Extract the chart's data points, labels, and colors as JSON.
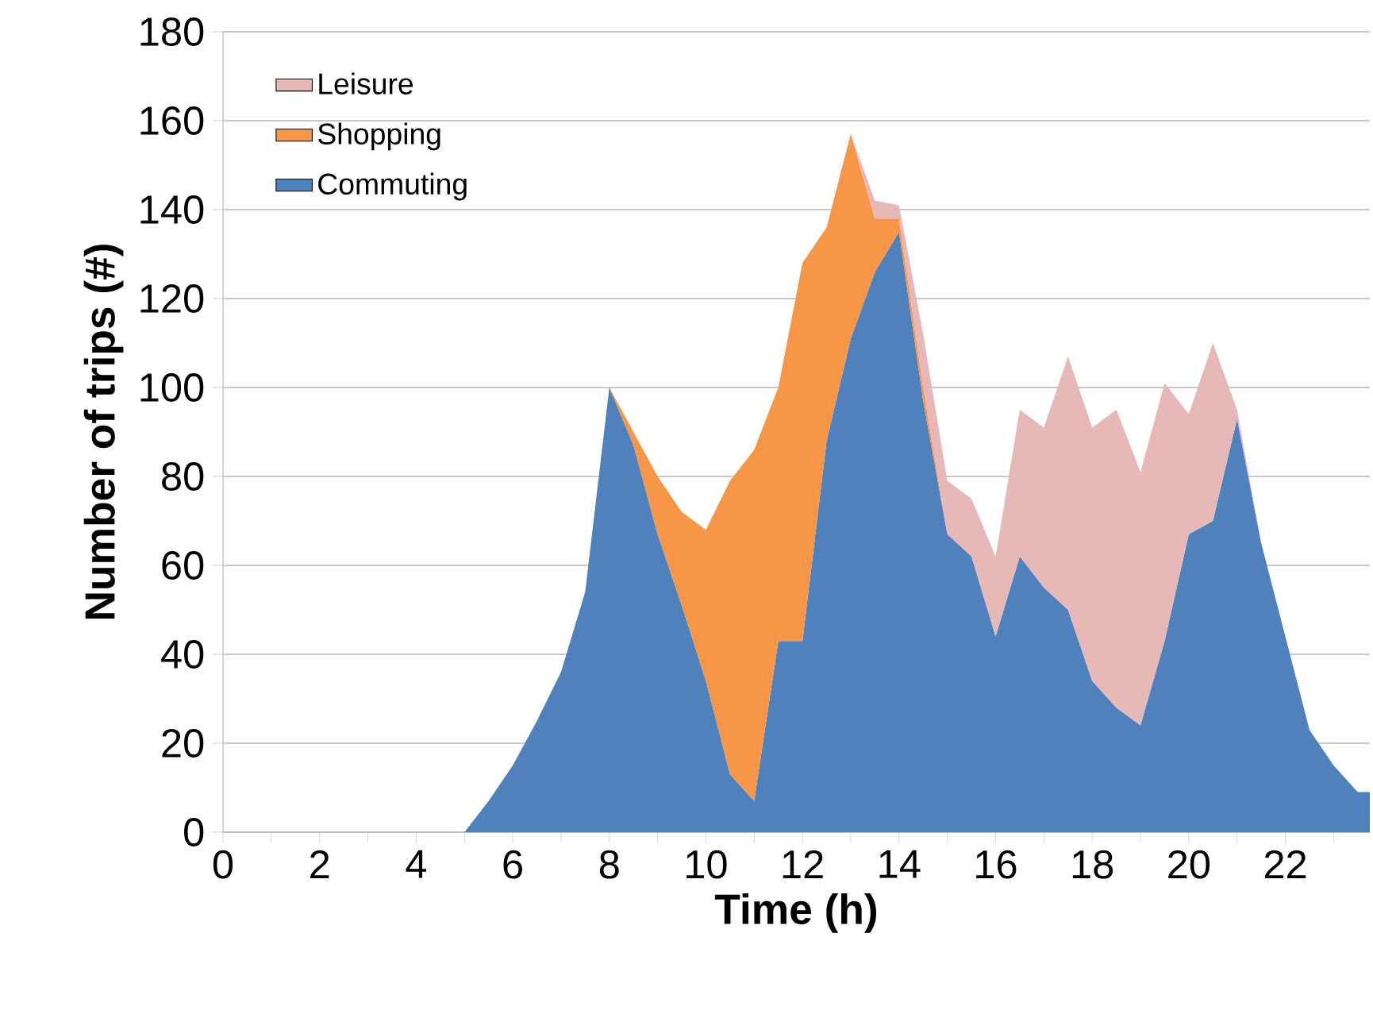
{
  "chart_data": {
    "type": "area",
    "stacked": true,
    "xlabel": "Time (h)",
    "ylabel": "Number of trips (#)",
    "x": [
      0,
      0.5,
      1,
      1.5,
      2,
      2.5,
      3,
      3.5,
      4,
      4.5,
      5,
      5.5,
      6,
      6.5,
      7,
      7.5,
      8,
      8.5,
      9,
      9.5,
      10,
      10.5,
      11,
      11.5,
      12,
      12.5,
      13,
      13.5,
      14,
      14.5,
      15,
      15.5,
      16,
      16.5,
      17,
      17.5,
      18,
      18.5,
      19,
      19.5,
      20,
      20.5,
      21,
      21.5,
      22,
      22.5,
      23,
      23.5,
      23.75
    ],
    "series": [
      {
        "name": "Commuting",
        "color": "#4f81bd",
        "values": [
          0,
          0,
          0,
          0,
          0,
          0,
          0,
          0,
          0,
          0,
          0,
          7,
          15,
          25,
          36,
          54,
          100,
          87,
          67,
          51,
          34,
          13,
          7,
          43,
          43,
          88,
          111,
          126,
          135,
          97,
          67,
          62,
          44,
          62,
          55,
          50,
          34,
          28,
          24,
          43,
          67,
          70,
          93,
          65,
          44,
          23,
          15,
          9,
          9
        ]
      },
      {
        "name": "Shopping",
        "color": "#f79646",
        "values": [
          null,
          null,
          null,
          null,
          null,
          null,
          null,
          null,
          null,
          null,
          null,
          null,
          null,
          null,
          null,
          null,
          0,
          3,
          13,
          21,
          34,
          66,
          79,
          57,
          85,
          48,
          46,
          12,
          3,
          3,
          0,
          null,
          null,
          null,
          null,
          null,
          null,
          null,
          null,
          null,
          null,
          null,
          null,
          null,
          null,
          null,
          null,
          null,
          null
        ]
      },
      {
        "name": "Leisure",
        "color": "#e6b9b8",
        "values": [
          null,
          null,
          null,
          null,
          null,
          null,
          null,
          null,
          null,
          null,
          null,
          null,
          null,
          null,
          null,
          null,
          null,
          null,
          null,
          null,
          null,
          null,
          null,
          null,
          null,
          null,
          0,
          4,
          3,
          12,
          12,
          13,
          18,
          33,
          36,
          57,
          57,
          67,
          57,
          58,
          27,
          40,
          2,
          0,
          null,
          null,
          null,
          null,
          null
        ]
      }
    ],
    "xlim": [
      0,
      23.75
    ],
    "xticks": [
      0,
      {
        "value": 1,
        "label": null
      },
      2,
      {
        "value": 3,
        "label": null
      },
      4,
      {
        "value": 5,
        "label": null
      },
      6,
      {
        "value": 7,
        "label": null
      },
      8,
      {
        "value": 9,
        "label": null
      },
      10,
      {
        "value": 11,
        "label": null
      },
      12,
      {
        "value": 13,
        "label": null
      },
      14,
      {
        "value": 15,
        "label": null
      },
      16,
      {
        "value": 17,
        "label": null
      },
      18,
      {
        "value": 19,
        "label": null
      },
      20,
      {
        "value": 21,
        "label": null
      },
      22,
      {
        "value": 23,
        "label": null
      }
    ],
    "ylim": [
      0,
      180
    ],
    "yticks": [
      0,
      20,
      40,
      60,
      80,
      100,
      120,
      140,
      160,
      180
    ],
    "grid": "y",
    "legend": "top left"
  }
}
